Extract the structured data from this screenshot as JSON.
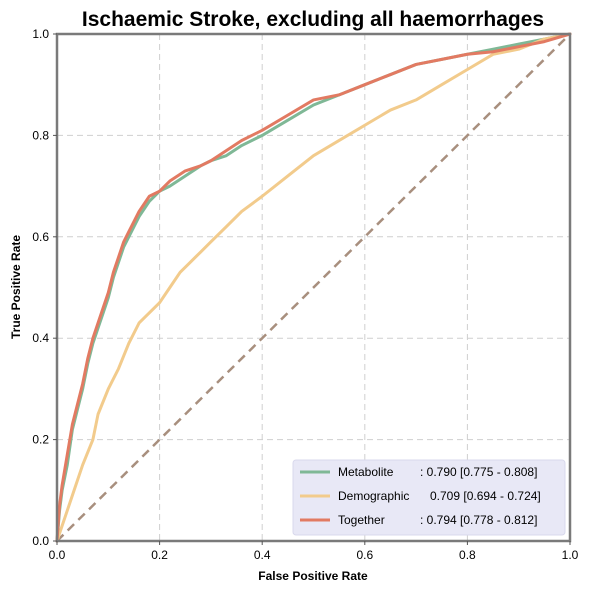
{
  "chart_data": {
    "type": "line",
    "title": "Ischaemic Stroke, excluding all haemorrhages",
    "xlabel": "False Positive Rate",
    "ylabel": "True Positive Rate",
    "xlim": [
      0,
      1
    ],
    "ylim": [
      0,
      1
    ],
    "x_ticks": [
      "0.0",
      "0.2",
      "0.4",
      "0.6",
      "0.8",
      "1.0"
    ],
    "y_ticks": [
      "0.0",
      "0.2",
      "0.4",
      "0.6",
      "0.8",
      "1.0"
    ],
    "grid": true,
    "legend_position": "bottom-right",
    "colors": {
      "metabolite": "#7fb896",
      "demographic": "#f2cb8c",
      "together": "#e27a62",
      "chance": "#a88f7e",
      "grid": "#cfcfcf",
      "legend_bg": "#e8e8f6"
    },
    "series": [
      {
        "name": "Metabolite",
        "auc_label": ": 0.790 [0.775 - 0.808]",
        "points": [
          [
            0,
            0
          ],
          [
            0.005,
            0.06
          ],
          [
            0.01,
            0.1
          ],
          [
            0.02,
            0.15
          ],
          [
            0.03,
            0.22
          ],
          [
            0.04,
            0.26
          ],
          [
            0.05,
            0.3
          ],
          [
            0.06,
            0.35
          ],
          [
            0.07,
            0.39
          ],
          [
            0.08,
            0.42
          ],
          [
            0.09,
            0.45
          ],
          [
            0.1,
            0.48
          ],
          [
            0.11,
            0.52
          ],
          [
            0.12,
            0.55
          ],
          [
            0.13,
            0.58
          ],
          [
            0.14,
            0.6
          ],
          [
            0.15,
            0.62
          ],
          [
            0.16,
            0.64
          ],
          [
            0.18,
            0.67
          ],
          [
            0.2,
            0.69
          ],
          [
            0.22,
            0.7
          ],
          [
            0.25,
            0.72
          ],
          [
            0.28,
            0.74
          ],
          [
            0.3,
            0.75
          ],
          [
            0.33,
            0.76
          ],
          [
            0.36,
            0.78
          ],
          [
            0.4,
            0.8
          ],
          [
            0.45,
            0.83
          ],
          [
            0.5,
            0.86
          ],
          [
            0.55,
            0.88
          ],
          [
            0.6,
            0.9
          ],
          [
            0.65,
            0.92
          ],
          [
            0.7,
            0.94
          ],
          [
            0.75,
            0.95
          ],
          [
            0.8,
            0.96
          ],
          [
            0.85,
            0.97
          ],
          [
            0.9,
            0.98
          ],
          [
            0.95,
            0.99
          ],
          [
            1,
            1
          ]
        ]
      },
      {
        "name": "Demographic",
        "auc_label": "0.709 [0.694 - 0.724]",
        "points": [
          [
            0,
            0
          ],
          [
            0.01,
            0.03
          ],
          [
            0.02,
            0.06
          ],
          [
            0.03,
            0.09
          ],
          [
            0.05,
            0.15
          ],
          [
            0.07,
            0.2
          ],
          [
            0.08,
            0.25
          ],
          [
            0.1,
            0.3
          ],
          [
            0.12,
            0.34
          ],
          [
            0.14,
            0.39
          ],
          [
            0.16,
            0.43
          ],
          [
            0.18,
            0.45
          ],
          [
            0.2,
            0.47
          ],
          [
            0.22,
            0.5
          ],
          [
            0.24,
            0.53
          ],
          [
            0.26,
            0.55
          ],
          [
            0.28,
            0.57
          ],
          [
            0.3,
            0.59
          ],
          [
            0.33,
            0.62
          ],
          [
            0.36,
            0.65
          ],
          [
            0.4,
            0.68
          ],
          [
            0.45,
            0.72
          ],
          [
            0.5,
            0.76
          ],
          [
            0.55,
            0.79
          ],
          [
            0.6,
            0.82
          ],
          [
            0.65,
            0.85
          ],
          [
            0.7,
            0.87
          ],
          [
            0.75,
            0.9
          ],
          [
            0.8,
            0.93
          ],
          [
            0.85,
            0.96
          ],
          [
            0.9,
            0.97
          ],
          [
            0.95,
            0.99
          ],
          [
            1,
            1
          ]
        ]
      },
      {
        "name": "Together",
        "auc_label": ": 0.794 [0.778 - 0.812]",
        "points": [
          [
            0,
            0
          ],
          [
            0.005,
            0.07
          ],
          [
            0.01,
            0.11
          ],
          [
            0.02,
            0.17
          ],
          [
            0.03,
            0.23
          ],
          [
            0.04,
            0.27
          ],
          [
            0.05,
            0.31
          ],
          [
            0.06,
            0.36
          ],
          [
            0.07,
            0.4
          ],
          [
            0.08,
            0.43
          ],
          [
            0.09,
            0.46
          ],
          [
            0.1,
            0.49
          ],
          [
            0.11,
            0.53
          ],
          [
            0.12,
            0.56
          ],
          [
            0.13,
            0.59
          ],
          [
            0.14,
            0.61
          ],
          [
            0.15,
            0.63
          ],
          [
            0.16,
            0.65
          ],
          [
            0.18,
            0.68
          ],
          [
            0.2,
            0.69
          ],
          [
            0.22,
            0.71
          ],
          [
            0.25,
            0.73
          ],
          [
            0.28,
            0.74
          ],
          [
            0.3,
            0.75
          ],
          [
            0.33,
            0.77
          ],
          [
            0.36,
            0.79
          ],
          [
            0.4,
            0.81
          ],
          [
            0.45,
            0.84
          ],
          [
            0.5,
            0.87
          ],
          [
            0.55,
            0.88
          ],
          [
            0.6,
            0.9
          ],
          [
            0.65,
            0.92
          ],
          [
            0.7,
            0.94
          ],
          [
            0.75,
            0.95
          ],
          [
            0.8,
            0.96
          ],
          [
            0.85,
            0.965
          ],
          [
            0.9,
            0.975
          ],
          [
            0.95,
            0.985
          ],
          [
            1,
            1
          ]
        ]
      }
    ],
    "reference_line": {
      "points": [
        [
          0,
          0
        ],
        [
          1,
          1
        ]
      ]
    }
  }
}
